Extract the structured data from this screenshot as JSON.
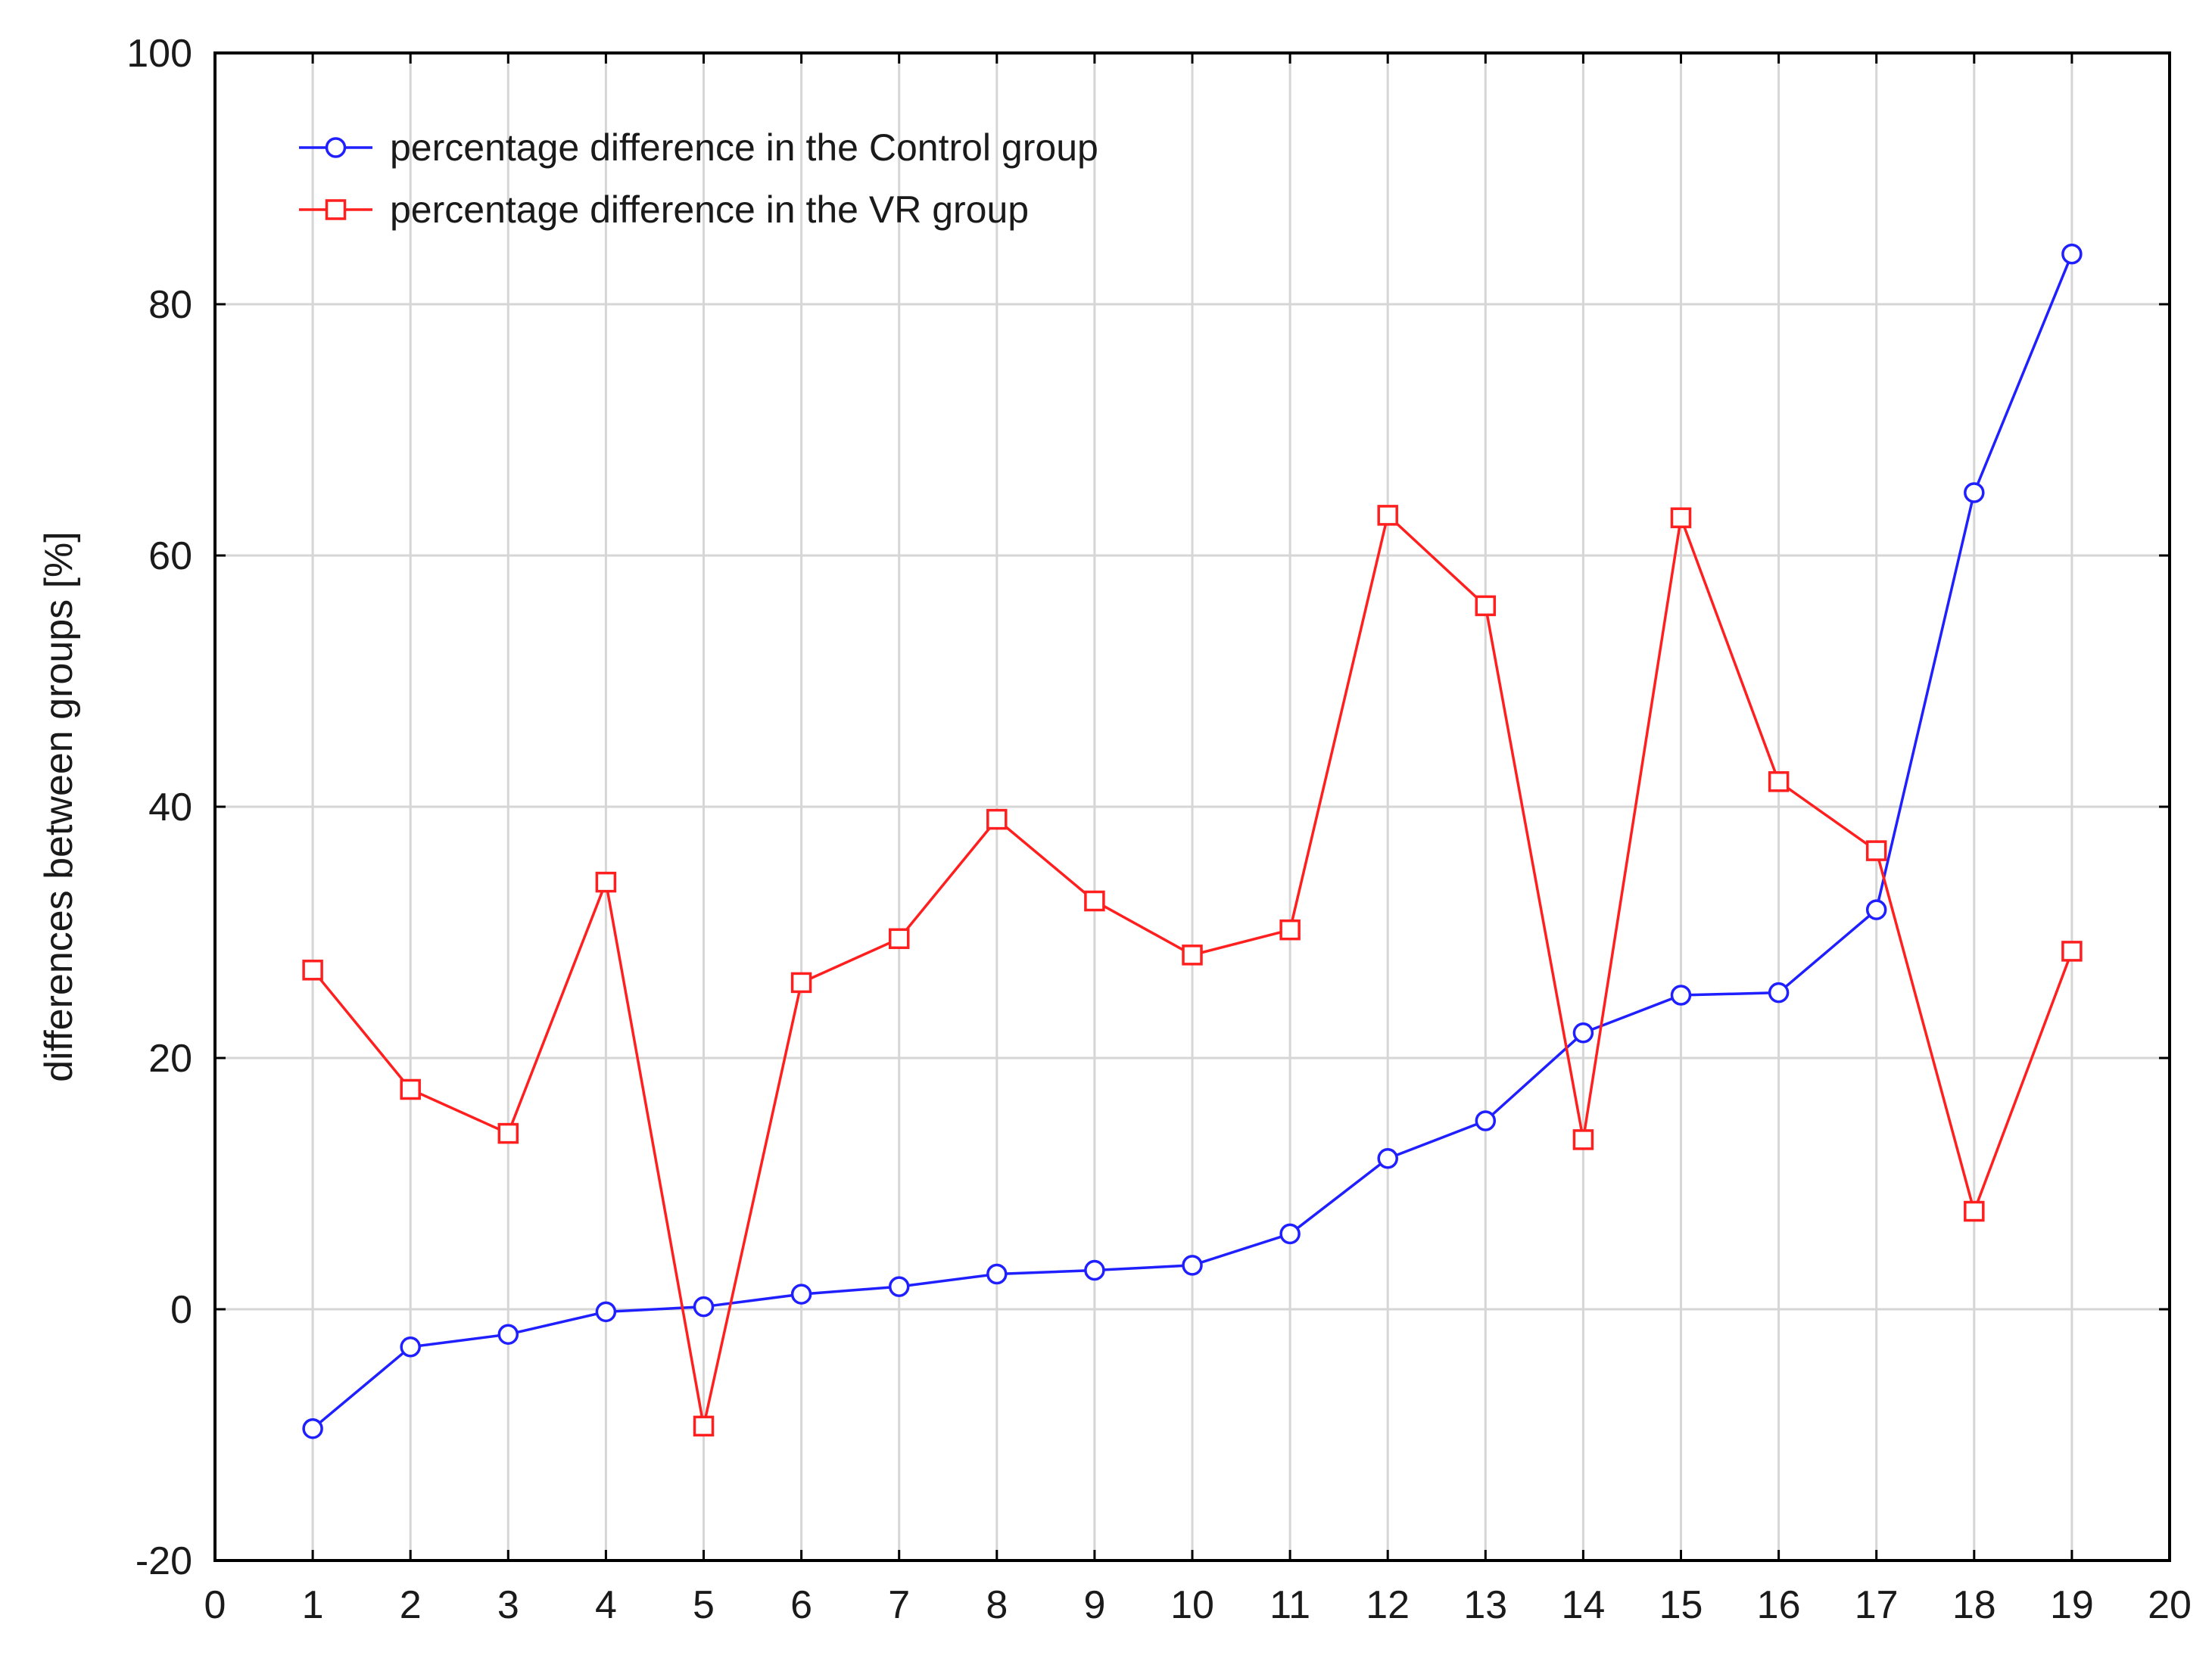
{
  "chart_data": {
    "type": "line",
    "title": "",
    "xlabel": "",
    "ylabel": "differences between groups [%]",
    "xlim": [
      0,
      20
    ],
    "ylim": [
      -20,
      100
    ],
    "xticks": [
      "0",
      "1",
      "2",
      "3",
      "4",
      "5",
      "6",
      "7",
      "8",
      "9",
      "10",
      "11",
      "12",
      "13",
      "14",
      "15",
      "16",
      "17",
      "18",
      "19",
      "20"
    ],
    "yticks": [
      "-20",
      "0",
      "20",
      "40",
      "60",
      "80",
      "100"
    ],
    "grid": true,
    "legend_position": "top-left",
    "x": [
      1,
      2,
      3,
      4,
      5,
      6,
      7,
      8,
      9,
      10,
      11,
      12,
      13,
      14,
      15,
      16,
      17,
      18,
      19
    ],
    "series": [
      {
        "name": "percentage difference in the Control group",
        "color": "#1f1fff",
        "marker": "circle",
        "values": [
          -9.5,
          -3,
          -2,
          -0.2,
          0.2,
          1.2,
          1.8,
          2.8,
          3.1,
          3.5,
          6,
          12,
          15,
          22,
          25,
          25.2,
          31.8,
          65,
          84
        ]
      },
      {
        "name": "percentage difference in the VR group",
        "color": "#ff1f1f",
        "marker": "square",
        "values": [
          27,
          17.5,
          14,
          34,
          -9.3,
          26,
          29.5,
          39,
          32.5,
          28.2,
          30.2,
          63.2,
          56,
          13.5,
          63,
          42,
          36.5,
          7.8,
          28.5
        ]
      }
    ]
  }
}
